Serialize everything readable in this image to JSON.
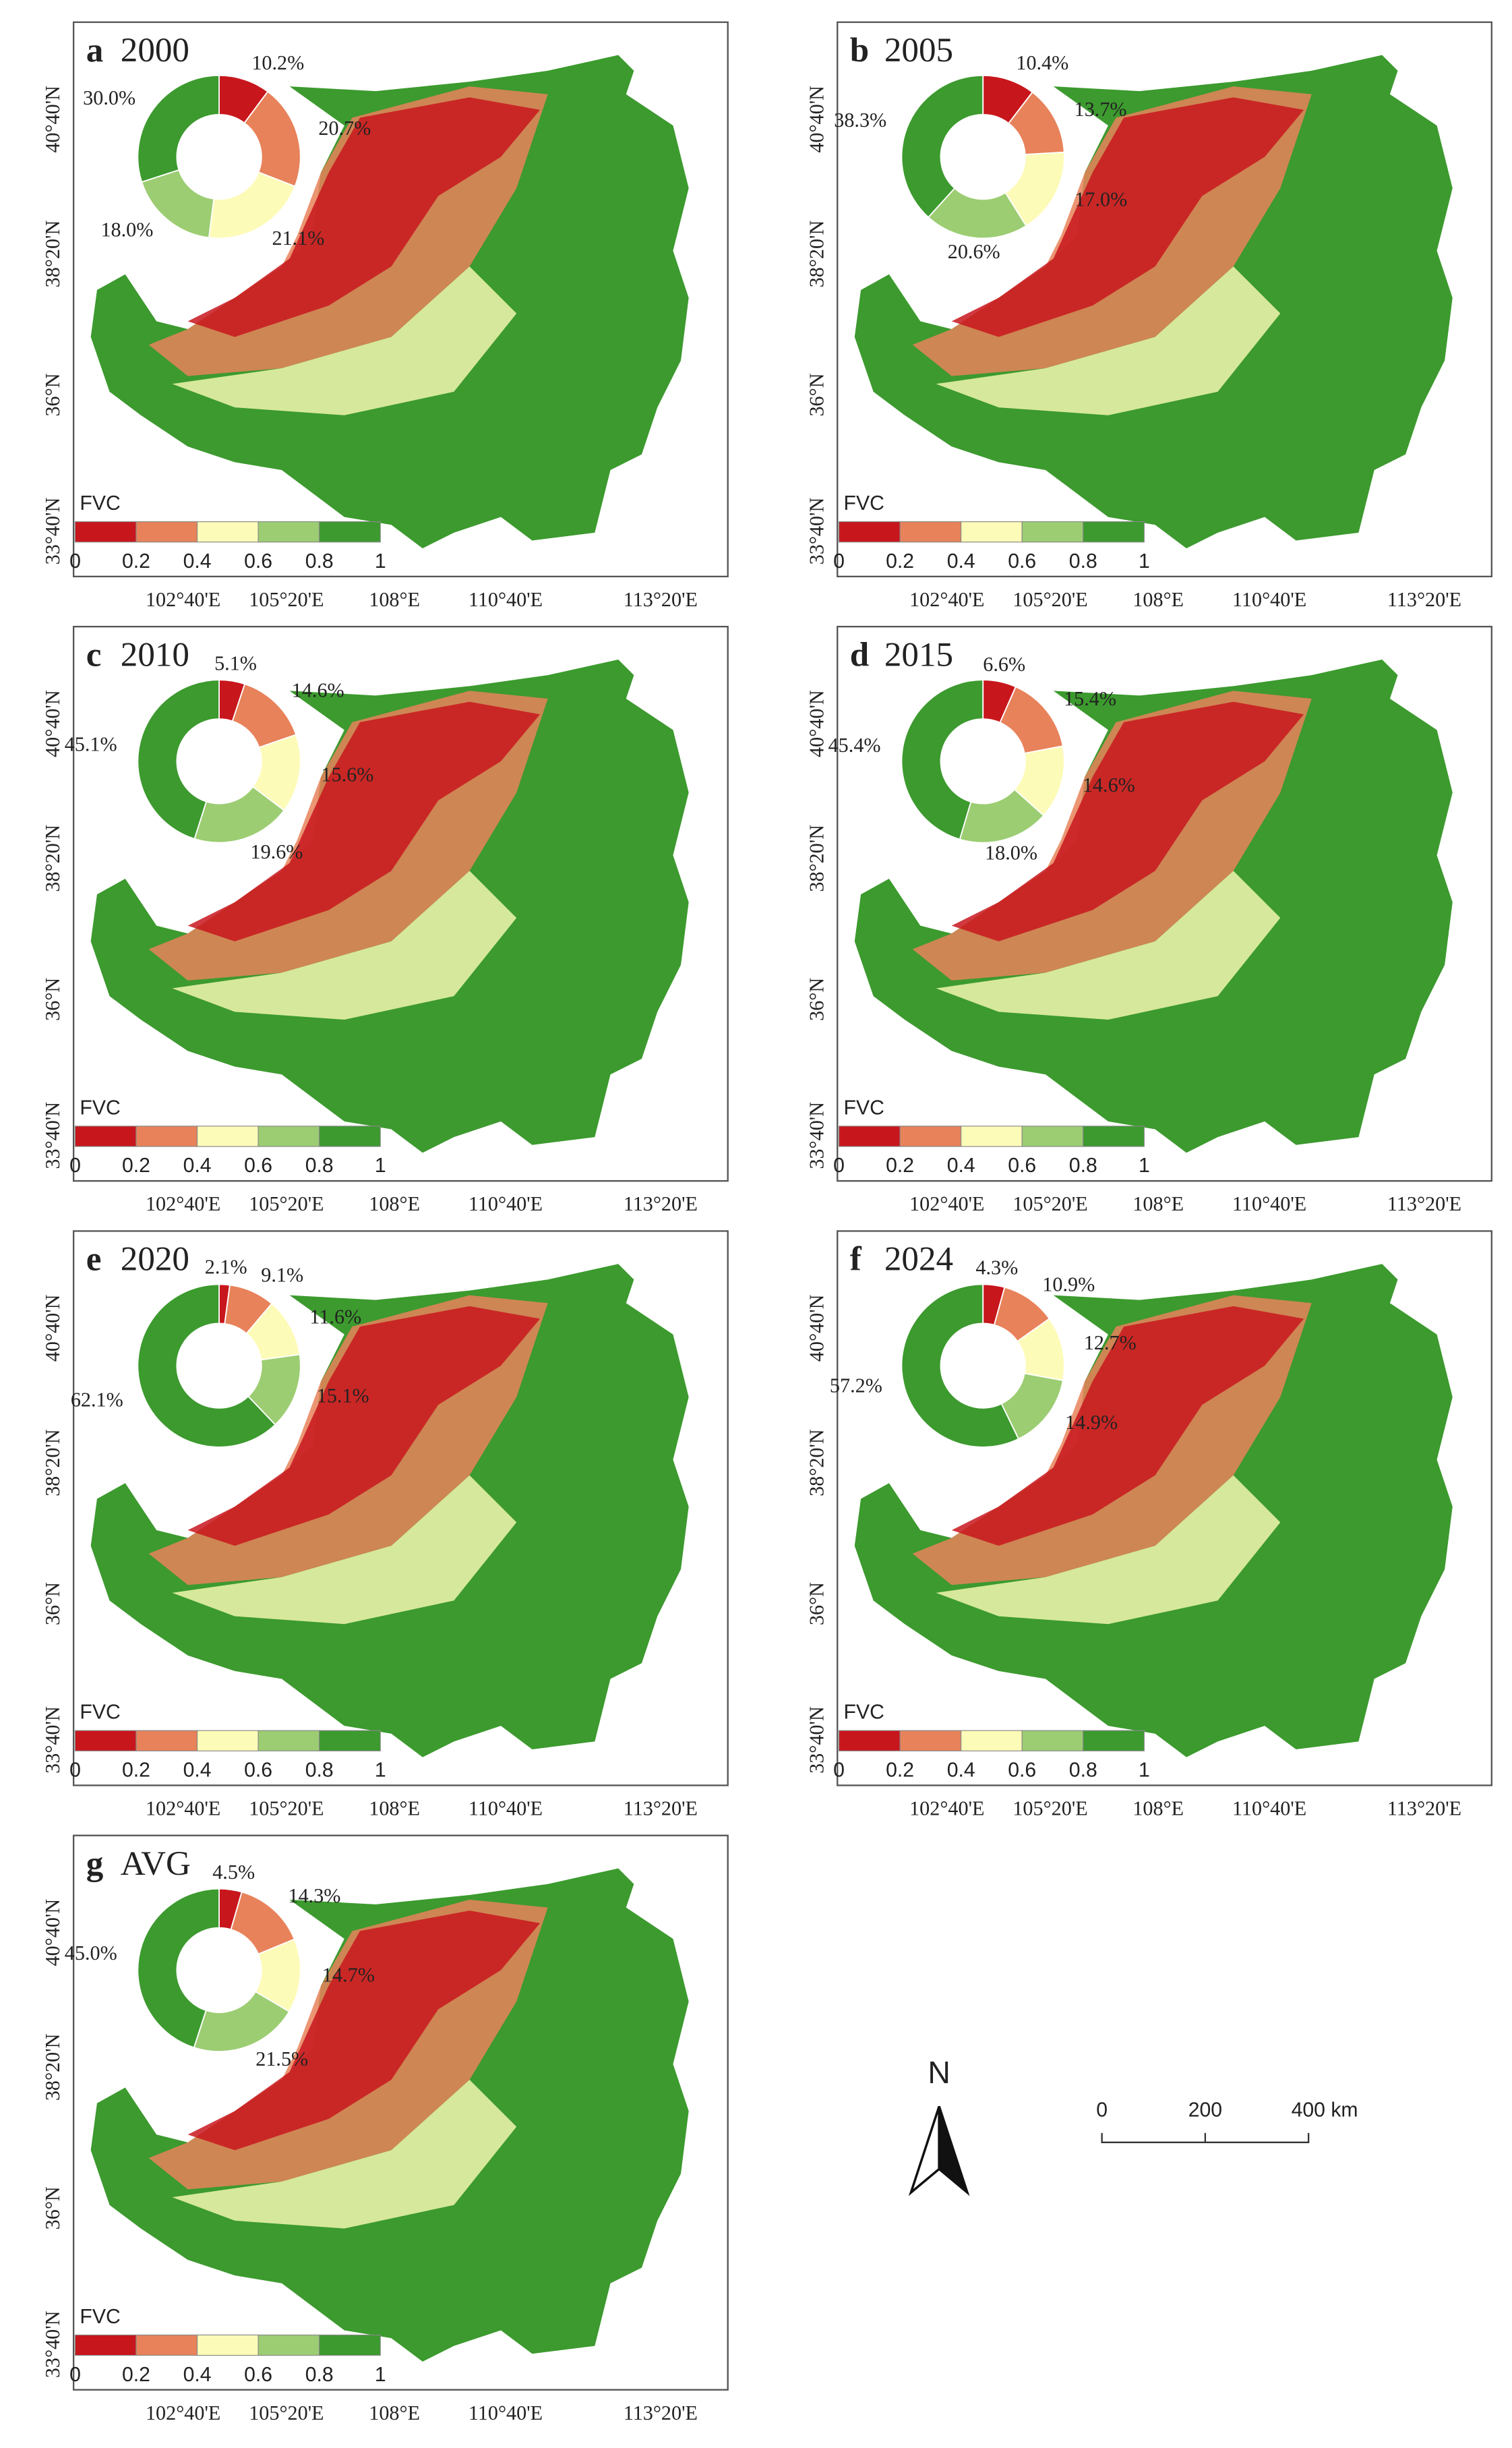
{
  "panels": [
    {
      "letter": "a",
      "year": "2000",
      "pie": {
        "type": "pie",
        "values": [
          10.2,
          20.7,
          21.1,
          18.0,
          30.0
        ],
        "value_labels": [
          "10.2%",
          "20.7%",
          "21.1%",
          "18.0%",
          "30.0%"
        ]
      }
    },
    {
      "letter": "b",
      "year": "2005",
      "pie": {
        "type": "pie",
        "values": [
          10.4,
          13.7,
          17.0,
          20.6,
          38.3
        ],
        "value_labels": [
          "10.4%",
          "13.7%",
          "17.0%",
          "20.6%",
          "38.3%"
        ]
      }
    },
    {
      "letter": "c",
      "year": "2010",
      "pie": {
        "type": "pie",
        "values": [
          5.1,
          14.6,
          15.6,
          19.6,
          45.1
        ],
        "value_labels": [
          "5.1%",
          "14.6%",
          "15.6%",
          "19.6%",
          "45.1%"
        ]
      }
    },
    {
      "letter": "d",
      "year": "2015",
      "pie": {
        "type": "pie",
        "values": [
          6.6,
          15.4,
          14.6,
          18.0,
          45.4
        ],
        "value_labels": [
          "6.6%",
          "15.4%",
          "14.6%",
          "18.0%",
          "45.4%"
        ]
      }
    },
    {
      "letter": "e",
      "year": "2020",
      "pie": {
        "type": "pie",
        "values": [
          2.1,
          9.1,
          11.6,
          15.1,
          62.1
        ],
        "value_labels": [
          "2.1%",
          "9.1%",
          "11.6%",
          "15.1%",
          "62.1%"
        ]
      }
    },
    {
      "letter": "f",
      "year": "2024",
      "pie": {
        "type": "pie",
        "values": [
          4.3,
          10.9,
          12.7,
          14.9,
          57.2
        ],
        "value_labels": [
          "4.3%",
          "10.9%",
          "12.7%",
          "14.9%",
          "57.2%"
        ]
      }
    },
    {
      "letter": "g",
      "year": "AVG",
      "pie": {
        "type": "pie",
        "values": [
          4.5,
          14.3,
          14.7,
          21.5,
          45.0
        ],
        "value_labels": [
          "4.5%",
          "14.3%",
          "14.7%",
          "21.5%",
          "45.0%"
        ]
      }
    }
  ],
  "legend": {
    "title": "FVC",
    "ticks": [
      0,
      0.2,
      0.4,
      0.6,
      0.8,
      1
    ],
    "colors": [
      "#c8161d",
      "#e8825a",
      "#fdfbb8",
      "#9ccd72",
      "#3c9a2e"
    ]
  },
  "lat_labels": [
    "40°40'N",
    "38°20'N",
    "36°N",
    "33°40'N"
  ],
  "lon_labels": [
    "102°40'E",
    "105°20'E",
    "108°E",
    "110°40'E",
    "113°20'E"
  ],
  "north": "N",
  "scale_bar": {
    "labels": [
      "0",
      "200",
      "400 km"
    ]
  }
}
